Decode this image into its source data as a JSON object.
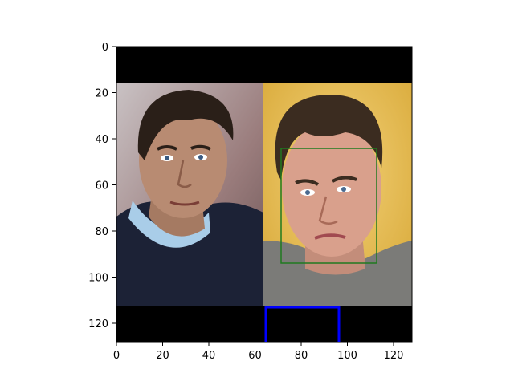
{
  "figure": {
    "image_shape": [
      128,
      128
    ],
    "x_ticks": [
      "0",
      "20",
      "40",
      "60",
      "80",
      "100",
      "120"
    ],
    "y_ticks": [
      "0",
      "20",
      "40",
      "60",
      "80",
      "100",
      "120"
    ],
    "panels": [
      {
        "name": "left-face-photo",
        "background": "#9d8784",
        "shirt": "#1b2238",
        "collar": "#a9cde8",
        "skin": "#b98a6f",
        "hair": "#2a1f18"
      },
      {
        "name": "right-face-photo",
        "background": "#e8c25e",
        "shirt": "#7b7b78",
        "skin": "#d8a08c",
        "hair": "#3b2c20"
      }
    ],
    "padding_color": "#000000",
    "face_box_color": "#1f7a1f",
    "mask_box_color": "#0000ff"
  }
}
